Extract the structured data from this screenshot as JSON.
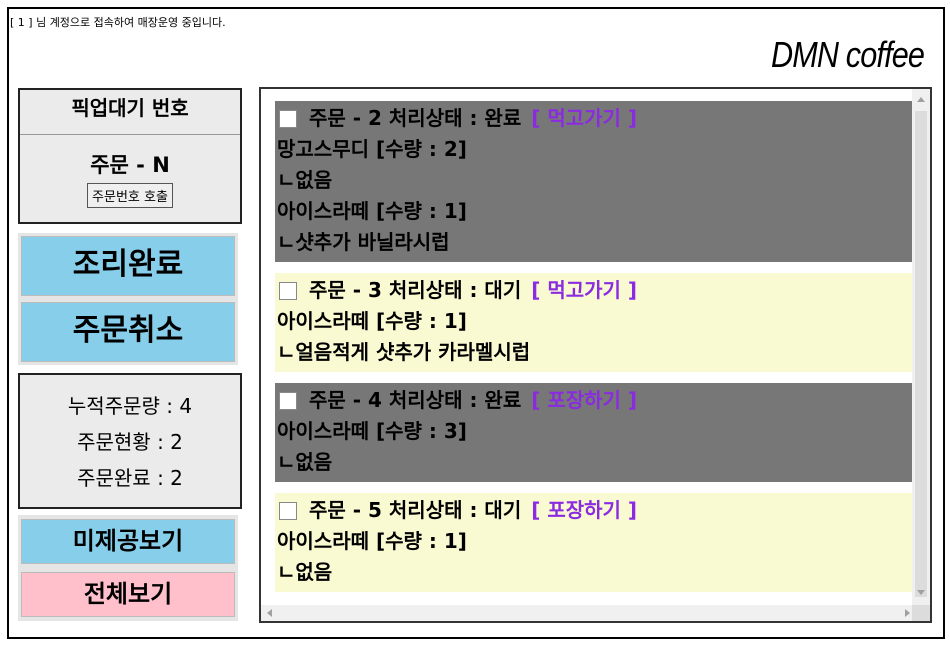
{
  "header": {
    "session_text": "[ 1 ] 님 계정으로 접속하여 매장운영 중입니다.",
    "brand": "DMN coffee"
  },
  "pickup": {
    "title": "픽업대기 번호",
    "number": "주문 - N",
    "call_button": "주문번호 호출"
  },
  "actions": {
    "complete": "조리완료",
    "cancel": "주문취소"
  },
  "stats": {
    "total": "누적주문량 : 4",
    "current": "주문현황 : 2",
    "completed": "주문완료 : 2"
  },
  "views": {
    "pending": "미제공보기",
    "all": "전체보기"
  },
  "colors": {
    "done_bg": "#777777",
    "wait_bg": "#fafad2",
    "type_text": "#8a2be2",
    "action_btn": "#87ceeb",
    "all_btn": "#ffc0cb"
  },
  "orders": [
    {
      "header": "주문 - 2 처리상태 : 완료",
      "type": "[ 먹고가기 ]",
      "status": "done",
      "lines": [
        "망고스무디 [수량 : 2]",
        "ㄴ없음",
        "아이스라떼 [수량 : 1]",
        "ㄴ샷추가 바닐라시럽"
      ]
    },
    {
      "header": "주문 - 3 처리상태 : 대기",
      "type": "[ 먹고가기 ]",
      "status": "wait",
      "lines": [
        "아이스라떼 [수량 : 1]",
        "ㄴ얼음적게 샷추가 카라멜시럽"
      ]
    },
    {
      "header": "주문 - 4 처리상태 : 완료",
      "type": "[ 포장하기 ]",
      "status": "done",
      "lines": [
        "아이스라떼 [수량 : 3]",
        "ㄴ없음"
      ]
    },
    {
      "header": "주문 - 5 처리상태 : 대기",
      "type": "[ 포장하기 ]",
      "status": "wait",
      "lines": [
        "아이스라떼 [수량 : 1]",
        "ㄴ없음"
      ]
    }
  ]
}
